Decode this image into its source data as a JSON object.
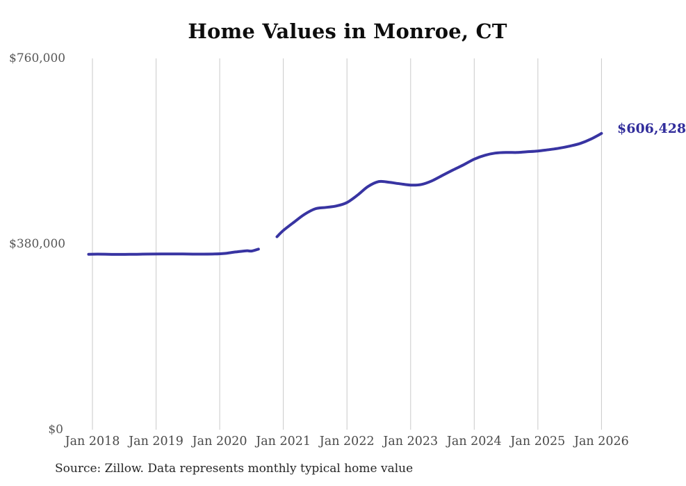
{
  "page": {
    "source_note": "Source: Zillow. Data represents monthly typical home value"
  },
  "colors": {
    "line": "#3834a2",
    "end_label": "#322e9c",
    "grid": "#c9c9c9",
    "axis_text": "#525252",
    "title_text": "#0d0d0d",
    "background": "#ffffff"
  },
  "chart_data": {
    "type": "line",
    "title": "Home Values in Monroe, CT",
    "xlabel": "",
    "ylabel": "",
    "ylim": [
      0,
      760000
    ],
    "grid": "vertical-only",
    "legend": "none",
    "final_value": 606428,
    "final_value_label": "$606,428",
    "y_ticks": [
      {
        "label": "$0",
        "value": 0
      },
      {
        "label": "$380,000",
        "value": 380000
      },
      {
        "label": "$760,000",
        "value": 760000
      }
    ],
    "x_ticks": [
      {
        "label": "Jan 2018",
        "year": 2018
      },
      {
        "label": "Jan 2019",
        "year": 2019
      },
      {
        "label": "Jan 2020",
        "year": 2020
      },
      {
        "label": "Jan 2021",
        "year": 2021
      },
      {
        "label": "Jan 2022",
        "year": 2022
      },
      {
        "label": "Jan 2023",
        "year": 2023
      },
      {
        "label": "Jan 2024",
        "year": 2024
      },
      {
        "label": "Jan 2025",
        "year": 2025
      },
      {
        "label": "Jan 2026",
        "year": 2026
      }
    ],
    "series": [
      {
        "name": "Monthly typical home value",
        "note": "gap in data between Aug 2020 and Dec 2020",
        "segments": [
          [
            [
              2017.94,
              359000
            ],
            [
              2018.08,
              359400
            ],
            [
              2018.25,
              359100
            ],
            [
              2018.42,
              358800
            ],
            [
              2018.58,
              358900
            ],
            [
              2018.75,
              359200
            ],
            [
              2018.92,
              359500
            ],
            [
              2019.08,
              359700
            ],
            [
              2019.25,
              359800
            ],
            [
              2019.42,
              359600
            ],
            [
              2019.58,
              359400
            ],
            [
              2019.75,
              359300
            ],
            [
              2019.92,
              359600
            ],
            [
              2020.08,
              360800
            ],
            [
              2020.25,
              363800
            ],
            [
              2020.42,
              366200
            ],
            [
              2020.5,
              365600
            ],
            [
              2020.61,
              369600
            ]
          ],
          [
            [
              2020.9,
              395000
            ],
            [
              2021.0,
              407800
            ],
            [
              2021.17,
              425000
            ],
            [
              2021.33,
              440600
            ],
            [
              2021.5,
              452000
            ],
            [
              2021.67,
              455000
            ],
            [
              2021.83,
              457800
            ],
            [
              2022.0,
              464900
            ],
            [
              2022.17,
              480600
            ],
            [
              2022.33,
              497700
            ],
            [
              2022.5,
              507900
            ],
            [
              2022.67,
              506200
            ],
            [
              2022.83,
              503400
            ],
            [
              2023.0,
              500700
            ],
            [
              2023.17,
              502000
            ],
            [
              2023.33,
              509100
            ],
            [
              2023.5,
              520500
            ],
            [
              2023.67,
              531900
            ],
            [
              2023.83,
              541900
            ],
            [
              2024.0,
              553800
            ],
            [
              2024.17,
              561800
            ],
            [
              2024.33,
              566100
            ],
            [
              2024.5,
              567500
            ],
            [
              2024.67,
              567500
            ],
            [
              2024.83,
              569000
            ],
            [
              2025.0,
              570400
            ],
            [
              2025.17,
              573200
            ],
            [
              2025.33,
              576100
            ],
            [
              2025.5,
              580400
            ],
            [
              2025.67,
              586100
            ],
            [
              2025.83,
              594600
            ],
            [
              2026.0,
              606428
            ]
          ]
        ]
      }
    ]
  }
}
